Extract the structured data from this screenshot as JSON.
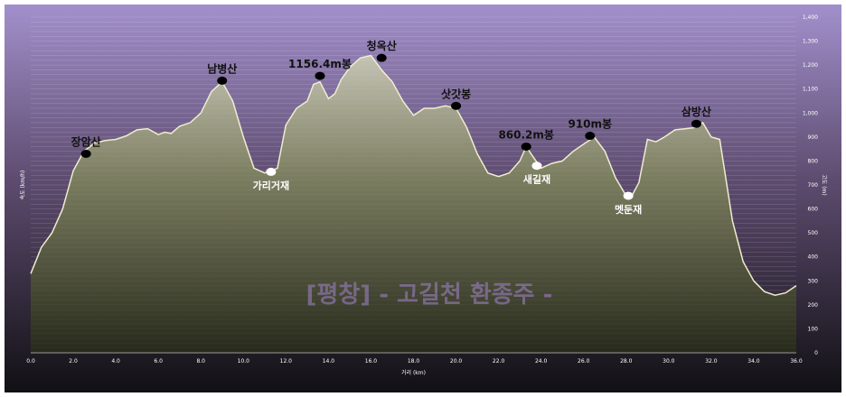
{
  "chart_data": {
    "type": "area",
    "title": "",
    "watermark": "[평창] - 고길천 환종주 -",
    "xlabel": "거리 (km)",
    "ylabel_left": "속도 (km/h)",
    "ylabel_right": "고도 (m)",
    "xlim": [
      0,
      36
    ],
    "ylim": [
      0,
      1400
    ],
    "grid": true,
    "x_ticks": [
      "0.0",
      "2.0",
      "4.0",
      "6.0",
      "8.0",
      "10.0",
      "12.0",
      "14.0",
      "16.0",
      "18.0",
      "20.0",
      "22.0",
      "24.0",
      "26.0",
      "28.0",
      "30.0",
      "32.0",
      "34.0",
      "36.0"
    ],
    "x_tick_values": [
      0,
      2,
      4,
      6,
      8,
      10,
      12,
      14,
      16,
      18,
      20,
      22,
      24,
      26,
      28,
      30,
      32,
      34,
      36
    ],
    "y_ticks_right": [
      "0",
      "100",
      "200",
      "300",
      "400",
      "500",
      "600",
      "700",
      "800",
      "900",
      "1,000",
      "1,100",
      "1,200",
      "1,300",
      "1,400"
    ],
    "y_tick_values": [
      0,
      100,
      200,
      300,
      400,
      500,
      600,
      700,
      800,
      900,
      1000,
      1100,
      1200,
      1300,
      1400
    ],
    "series": [
      {
        "x": [
          0,
          0.5,
          1,
          1.5,
          2,
          2.5,
          3,
          3.5,
          4,
          4.5,
          5,
          5.5,
          6,
          6.3,
          6.6,
          7,
          7.5,
          8,
          8.5,
          9,
          9.5,
          10,
          10.5,
          11,
          11.3,
          11.6,
          12,
          12.5,
          13,
          13.3,
          13.6,
          14,
          14.3,
          14.6,
          15,
          15.5,
          16,
          16.5,
          17,
          17.5,
          18,
          18.5,
          19,
          19.5,
          20,
          20.5,
          21,
          21.5,
          22,
          22.5,
          23,
          23.3,
          23.6,
          24,
          24.5,
          25,
          25.5,
          26,
          26.5,
          27,
          27.5,
          28,
          28.3,
          28.6,
          29,
          29.4,
          29.8,
          30.3,
          30.8,
          31.3,
          31.6,
          32,
          32.4,
          33,
          33.5,
          34,
          34.5,
          35,
          35.5,
          36
        ],
        "y": [
          330,
          440,
          500,
          600,
          760,
          840,
          875,
          885,
          890,
          905,
          930,
          935,
          910,
          920,
          915,
          945,
          960,
          1000,
          1090,
          1130,
          1050,
          900,
          770,
          750,
          760,
          770,
          950,
          1020,
          1050,
          1120,
          1130,
          1060,
          1080,
          1140,
          1190,
          1230,
          1240,
          1180,
          1130,
          1050,
          990,
          1020,
          1020,
          1030,
          1020,
          940,
          830,
          750,
          735,
          750,
          800,
          860,
          820,
          770,
          790,
          800,
          840,
          870,
          900,
          840,
          730,
          655,
          660,
          710,
          890,
          880,
          900,
          930,
          935,
          940,
          960,
          900,
          890,
          550,
          380,
          300,
          255,
          240,
          250,
          280
        ]
      }
    ],
    "peaks": [
      {
        "label": "장암산",
        "x": 2.6,
        "y": 830
      },
      {
        "label": "남병산",
        "x": 9.0,
        "y": 1135
      },
      {
        "label": "1156.4m봉",
        "x": 13.6,
        "y": 1155
      },
      {
        "label": "청옥산",
        "x": 16.5,
        "y": 1230
      },
      {
        "label": "삿갓봉",
        "x": 20.0,
        "y": 1030
      },
      {
        "label": "860.2m봉",
        "x": 23.3,
        "y": 860
      },
      {
        "label": "910m봉",
        "x": 26.3,
        "y": 905
      },
      {
        "label": "삼방산",
        "x": 31.3,
        "y": 955
      }
    ],
    "passes": [
      {
        "label": "가리거재",
        "x": 11.3,
        "y": 755
      },
      {
        "label": "새길재",
        "x": 23.8,
        "y": 780
      },
      {
        "label": "멧둔재",
        "x": 28.1,
        "y": 655
      }
    ],
    "colors": {
      "background_top": "#a290cc",
      "background_bottom": "#111014",
      "fill_top": "#c5c3b4",
      "fill_bottom": "#272a1a",
      "line": "#efeccf",
      "peak_marker": "#000000",
      "pass_marker": "#ffffff"
    }
  }
}
